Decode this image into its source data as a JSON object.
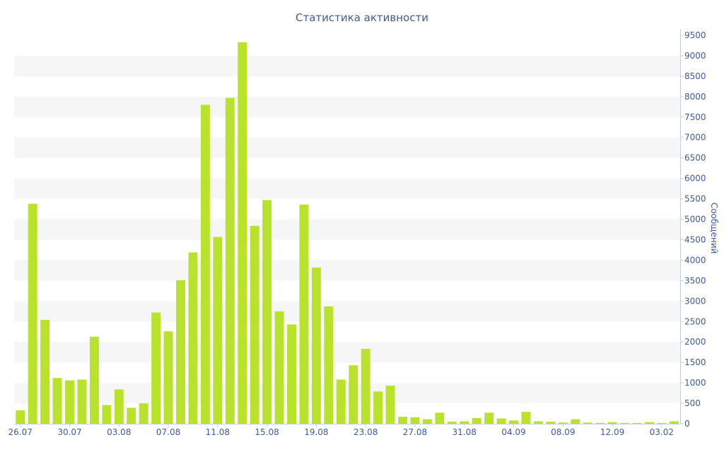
{
  "chart_data": {
    "type": "bar",
    "title": "Статистика активности",
    "ylabel": "Сообщений",
    "xlabel": "",
    "ylim": [
      0,
      9500
    ],
    "yticks": [
      0,
      500,
      1000,
      1500,
      2000,
      2500,
      3000,
      3500,
      4000,
      4500,
      5000,
      5500,
      6000,
      6500,
      7000,
      7500,
      8000,
      8500,
      9000,
      9500
    ],
    "y_axis_side": "right",
    "grid": "alternating horizontal bands",
    "bar_color": "#b9e22c",
    "band_color": "#f6f6f6",
    "text_color": "#3d5a99",
    "xtick_labels": [
      "26.07",
      "30.07",
      "03.08",
      "07.08",
      "11.08",
      "15.08",
      "19.08",
      "23.08",
      "27.08",
      "31.08",
      "04.09",
      "08.09",
      "12.09",
      "03.02"
    ],
    "xtick_positions": [
      0,
      4,
      8,
      12,
      16,
      20,
      24,
      28,
      32,
      36,
      40,
      44,
      48,
      52
    ],
    "series": [
      {
        "values": [
          330,
          5380,
          2540,
          1120,
          1060,
          1080,
          2130,
          460,
          840,
          390,
          500,
          2720,
          2260,
          3510,
          4190,
          7800,
          4570,
          7970,
          9330,
          4840,
          5470,
          2750,
          2430,
          5360,
          3820,
          2870,
          1080,
          1430,
          1830,
          790,
          930,
          170,
          160,
          110,
          270,
          50,
          60,
          140,
          270,
          130,
          80,
          290,
          60,
          50,
          30,
          110,
          30,
          20,
          40,
          20,
          20,
          40,
          20,
          60
        ]
      }
    ]
  }
}
